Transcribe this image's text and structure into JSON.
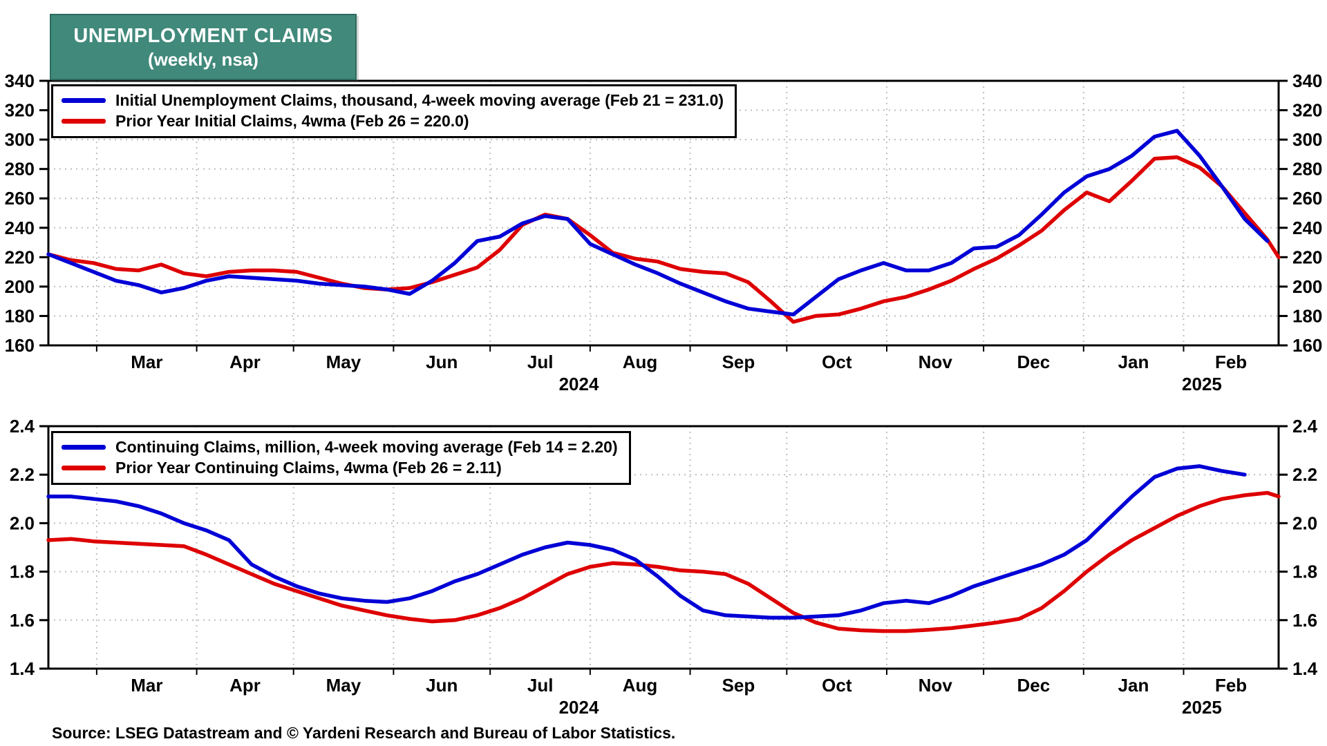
{
  "title": {
    "line1": "UNEMPLOYMENT CLAIMS",
    "line2": "(weekly, nsa)"
  },
  "source_text": "Source: LSEG Datastream and © Yardeni Research and Bureau of Labor Statistics.",
  "colors": {
    "title_bg": "#40897B",
    "blue_line": "#0000D6",
    "red_line": "#DE0000",
    "grid": "#BDBDBD",
    "frame": "#000000",
    "text": "#000000"
  },
  "chart_data": [
    {
      "type": "line",
      "panel": "initial-claims",
      "ylim": [
        160,
        340
      ],
      "yticks": [
        340,
        320,
        300,
        280,
        260,
        240,
        220,
        200,
        180,
        160
      ],
      "grid": true,
      "legend_position": "top-left",
      "x_axis": {
        "total_weeks": 54.5,
        "month_tick_weeks": [
          2.14,
          6.57,
          10.86,
          15.29,
          19.57,
          24.0,
          28.43,
          32.71,
          37.14,
          41.43,
          45.86,
          50.29
        ],
        "month_labels": [
          "Mar",
          "Apr",
          "May",
          "Jun",
          "Jul",
          "Aug",
          "Sep",
          "Oct",
          "Nov",
          "Dec",
          "Jan",
          "Feb"
        ],
        "month_label_weeks": [
          4.36,
          8.71,
          13.07,
          17.43,
          21.79,
          26.21,
          30.57,
          34.93,
          39.29,
          43.64,
          48.07,
          52.39
        ],
        "year_labels": [
          {
            "label": "2024",
            "week": 23.5
          },
          {
            "label": "2025",
            "week": 51.1
          }
        ]
      },
      "legend": [
        {
          "label": "Initial Unemployment Claims, thousand, 4-week moving average (Feb 21 = 231.0)",
          "color": "#0000D6"
        },
        {
          "label": "Prior Year Initial Claims, 4wma (Feb 26 = 220.0)",
          "color": "#DE0000"
        }
      ],
      "series": [
        {
          "name": "initial-claims-4wma",
          "color": "#0000D6",
          "weekly_values": [
            222,
            216,
            210,
            204,
            201,
            196,
            199,
            204,
            207,
            206,
            205,
            204,
            202,
            201,
            200,
            198,
            195,
            204,
            216,
            231,
            234,
            243,
            248,
            246,
            229,
            222,
            215,
            209,
            202,
            196,
            190,
            185,
            183,
            181,
            193,
            205,
            211,
            216,
            211,
            211,
            216,
            226,
            227,
            235,
            249,
            264,
            275,
            280,
            289,
            302,
            306,
            289,
            268,
            246,
            231
          ]
        },
        {
          "name": "prior-year-initial-claims-4wma",
          "color": "#DE0000",
          "end_week": 54.5,
          "weekly_values": [
            222,
            218,
            216,
            212,
            211,
            215,
            209,
            207,
            210,
            211,
            211,
            210,
            206,
            202,
            199,
            198,
            199,
            203,
            208,
            213,
            225,
            242,
            249,
            246,
            235,
            223,
            219,
            217,
            212,
            210,
            209,
            203,
            190,
            176,
            180,
            181,
            185,
            190,
            193,
            198,
            204,
            212,
            219,
            228,
            238,
            252,
            264,
            258,
            272,
            287,
            288,
            281,
            268,
            250,
            232,
            220
          ]
        }
      ]
    },
    {
      "type": "line",
      "panel": "continuing-claims",
      "ylim": [
        1.4,
        2.4
      ],
      "yticks": [
        2.4,
        2.2,
        2.0,
        1.8,
        1.6,
        1.4
      ],
      "grid": true,
      "legend_position": "top-left",
      "x_axis": {
        "total_weeks": 54.5,
        "month_tick_weeks": [
          2.14,
          6.57,
          10.86,
          15.29,
          19.57,
          24.0,
          28.43,
          32.71,
          37.14,
          41.43,
          45.86,
          50.29
        ],
        "month_labels": [
          "Mar",
          "Apr",
          "May",
          "Jun",
          "Jul",
          "Aug",
          "Sep",
          "Oct",
          "Nov",
          "Dec",
          "Jan",
          "Feb"
        ],
        "month_label_weeks": [
          4.36,
          8.71,
          13.07,
          17.43,
          21.79,
          26.21,
          30.57,
          34.93,
          39.29,
          43.64,
          48.07,
          52.39
        ],
        "year_labels": [
          {
            "label": "2024",
            "week": 23.5
          },
          {
            "label": "2025",
            "week": 51.1
          }
        ]
      },
      "legend": [
        {
          "label": "Continuing Claims, million, 4-week moving average (Feb 14 = 2.20)",
          "color": "#0000D6"
        },
        {
          "label": "Prior Year Continuing Claims, 4wma (Feb 26 = 2.11)",
          "color": "#DE0000"
        }
      ],
      "series": [
        {
          "name": "continuing-claims-4wma",
          "color": "#0000D6",
          "weekly_values": [
            2.11,
            2.11,
            2.1,
            2.09,
            2.07,
            2.04,
            2.0,
            1.97,
            1.93,
            1.83,
            1.78,
            1.74,
            1.71,
            1.69,
            1.68,
            1.675,
            1.69,
            1.72,
            1.76,
            1.79,
            1.83,
            1.87,
            1.9,
            1.92,
            1.91,
            1.89,
            1.85,
            1.78,
            1.7,
            1.64,
            1.62,
            1.615,
            1.61,
            1.61,
            1.615,
            1.62,
            1.64,
            1.67,
            1.68,
            1.67,
            1.7,
            1.74,
            1.77,
            1.8,
            1.83,
            1.87,
            1.93,
            2.02,
            2.11,
            2.19,
            2.225,
            2.235,
            2.215,
            2.2
          ]
        },
        {
          "name": "prior-year-continuing-claims-4wma",
          "color": "#DE0000",
          "end_week": 54.5,
          "weekly_values": [
            1.93,
            1.935,
            1.925,
            1.92,
            1.915,
            1.91,
            1.905,
            1.87,
            1.83,
            1.79,
            1.75,
            1.72,
            1.69,
            1.66,
            1.64,
            1.62,
            1.605,
            1.595,
            1.6,
            1.62,
            1.65,
            1.69,
            1.74,
            1.79,
            1.82,
            1.835,
            1.83,
            1.82,
            1.805,
            1.8,
            1.79,
            1.75,
            1.69,
            1.63,
            1.59,
            1.565,
            1.558,
            1.555,
            1.555,
            1.56,
            1.567,
            1.578,
            1.59,
            1.605,
            1.65,
            1.72,
            1.8,
            1.87,
            1.93,
            1.98,
            2.03,
            2.07,
            2.1,
            2.115,
            2.125,
            2.11
          ]
        }
      ]
    }
  ]
}
